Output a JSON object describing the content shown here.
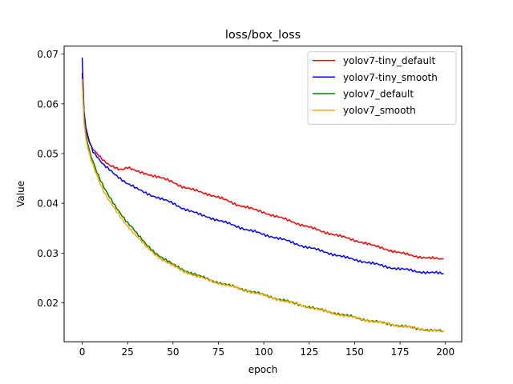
{
  "chart_data": {
    "type": "line",
    "title": "loss/box_loss",
    "xlabel": "epoch",
    "ylabel": "Value",
    "xlim": [
      -9.95,
      208.95
    ],
    "ylim": [
      0.01219,
      0.07161
    ],
    "x_ticks": [
      0,
      25,
      50,
      75,
      100,
      125,
      150,
      175,
      200
    ],
    "y_ticks": [
      0.02,
      0.03,
      0.04,
      0.05,
      0.06,
      0.07
    ],
    "grid": false,
    "legend_position": "upper right",
    "series": [
      {
        "name": "yolov7-tiny_default",
        "color": "#ff0000",
        "x": [
          0,
          1,
          2,
          3,
          4,
          5,
          6,
          8,
          10,
          12,
          15,
          18,
          20,
          22,
          25,
          28,
          30,
          35,
          40,
          45,
          50,
          55,
          60,
          65,
          70,
          75,
          80,
          85,
          90,
          95,
          100,
          105,
          110,
          115,
          120,
          125,
          130,
          135,
          140,
          145,
          150,
          155,
          160,
          165,
          170,
          175,
          180,
          185,
          190,
          195,
          199
        ],
        "y": [
          0.0662,
          0.0583,
          0.055,
          0.0535,
          0.0525,
          0.0515,
          0.051,
          0.0501,
          0.0492,
          0.0484,
          0.0476,
          0.0473,
          0.047,
          0.0469,
          0.0472,
          0.0467,
          0.0464,
          0.046,
          0.0455,
          0.0449,
          0.0443,
          0.0434,
          0.0428,
          0.0423,
          0.0418,
          0.0412,
          0.0405,
          0.0398,
          0.0393,
          0.0387,
          0.0382,
          0.0376,
          0.037,
          0.0364,
          0.0358,
          0.0352,
          0.0346,
          0.0341,
          0.0336,
          0.0331,
          0.0326,
          0.0321,
          0.0315,
          0.0311,
          0.0305,
          0.03,
          0.0297,
          0.0293,
          0.029,
          0.0289,
          0.0288
        ]
      },
      {
        "name": "yolov7-tiny_smooth",
        "color": "#0000ff",
        "x": [
          0,
          1,
          2,
          3,
          4,
          5,
          6,
          8,
          10,
          12,
          15,
          18,
          20,
          22,
          25,
          28,
          30,
          35,
          40,
          45,
          50,
          55,
          60,
          65,
          70,
          75,
          80,
          85,
          90,
          95,
          100,
          105,
          110,
          115,
          120,
          125,
          130,
          135,
          140,
          145,
          150,
          155,
          160,
          165,
          170,
          175,
          180,
          185,
          190,
          195,
          199
        ],
        "y": [
          0.0693,
          0.0585,
          0.0553,
          0.0538,
          0.0525,
          0.0515,
          0.0505,
          0.0496,
          0.0485,
          0.0476,
          0.0467,
          0.0458,
          0.0453,
          0.0448,
          0.044,
          0.0434,
          0.0429,
          0.0421,
          0.0414,
          0.0407,
          0.04,
          0.0391,
          0.0384,
          0.0377,
          0.0372,
          0.0366,
          0.036,
          0.0354,
          0.0348,
          0.0343,
          0.0337,
          0.0333,
          0.0328,
          0.0322,
          0.0316,
          0.0311,
          0.0306,
          0.0301,
          0.0296,
          0.0291,
          0.0287,
          0.0283,
          0.0279,
          0.0275,
          0.0271,
          0.0268,
          0.0266,
          0.0263,
          0.0261,
          0.026,
          0.0259
        ]
      },
      {
        "name": "yolov7_default",
        "color": "#008000",
        "x": [
          0,
          1,
          2,
          3,
          4,
          5,
          6,
          8,
          10,
          12,
          15,
          18,
          20,
          22,
          25,
          28,
          30,
          35,
          40,
          45,
          50,
          55,
          60,
          65,
          70,
          75,
          80,
          85,
          90,
          95,
          100,
          105,
          110,
          115,
          120,
          125,
          130,
          135,
          140,
          145,
          150,
          155,
          160,
          165,
          170,
          175,
          180,
          185,
          190,
          195,
          199
        ],
        "y": [
          0.0648,
          0.057,
          0.054,
          0.052,
          0.0505,
          0.0494,
          0.0485,
          0.0465,
          0.0448,
          0.0432,
          0.0412,
          0.0395,
          0.0385,
          0.0376,
          0.0362,
          0.035,
          0.0339,
          0.0318,
          0.0302,
          0.0288,
          0.0277,
          0.0268,
          0.026,
          0.0253,
          0.0247,
          0.0241,
          0.0236,
          0.0231,
          0.0226,
          0.0221,
          0.0216,
          0.0211,
          0.0206,
          0.0201,
          0.0196,
          0.0192,
          0.0187,
          0.0183,
          0.0179,
          0.0175,
          0.0171,
          0.0167,
          0.0163,
          0.016,
          0.0157,
          0.0154,
          0.0151,
          0.0148,
          0.0146,
          0.0144,
          0.0143
        ]
      },
      {
        "name": "yolov7_smooth",
        "color": "#ffa500",
        "x": [
          0,
          1,
          2,
          3,
          4,
          5,
          6,
          8,
          10,
          12,
          15,
          18,
          20,
          22,
          25,
          28,
          30,
          35,
          40,
          45,
          50,
          55,
          60,
          65,
          70,
          75,
          80,
          85,
          90,
          95,
          100,
          105,
          110,
          115,
          120,
          125,
          130,
          135,
          140,
          145,
          150,
          155,
          160,
          165,
          170,
          175,
          180,
          185,
          190,
          195,
          199
        ],
        "y": [
          0.065,
          0.0562,
          0.0532,
          0.0512,
          0.0498,
          0.0487,
          0.0477,
          0.0458,
          0.044,
          0.0424,
          0.0404,
          0.0388,
          0.0378,
          0.0368,
          0.0355,
          0.0343,
          0.0334,
          0.0313,
          0.0298,
          0.0285,
          0.0274,
          0.0265,
          0.0258,
          0.0251,
          0.0245,
          0.024,
          0.0235,
          0.023,
          0.0225,
          0.022,
          0.0215,
          0.021,
          0.0205,
          0.02,
          0.0196,
          0.0191,
          0.0187,
          0.0182,
          0.0178,
          0.0174,
          0.017,
          0.0166,
          0.0163,
          0.016,
          0.0157,
          0.0154,
          0.0151,
          0.0148,
          0.0146,
          0.0144,
          0.0142
        ]
      }
    ]
  }
}
